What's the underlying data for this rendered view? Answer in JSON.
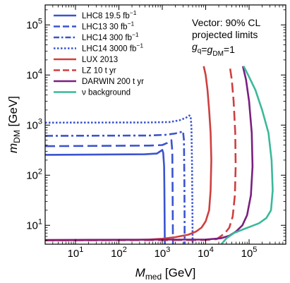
{
  "chart_data": {
    "type": "line",
    "xlabel": {
      "main": "M",
      "sub": "med",
      "unit": " [GeV]"
    },
    "ylabel": {
      "main": "m",
      "sub": "DM",
      "unit": " [GeV]"
    },
    "xscale": "log",
    "yscale": "log",
    "xlim": [
      2,
      700000
    ],
    "ylim": [
      4.2,
      250000
    ],
    "x_ticks": [
      {
        "value": 10,
        "label": "10",
        "sup": "1"
      },
      {
        "value": 100,
        "label": "10",
        "sup": "2"
      },
      {
        "value": 1000,
        "label": "10",
        "sup": "3"
      },
      {
        "value": 10000,
        "label": "10",
        "sup": "4"
      },
      {
        "value": 100000,
        "label": "10",
        "sup": "5"
      }
    ],
    "y_ticks": [
      {
        "value": 10,
        "label": "10",
        "sup": "1"
      },
      {
        "value": 100,
        "label": "10",
        "sup": "2"
      },
      {
        "value": 1000,
        "label": "10",
        "sup": "3"
      },
      {
        "value": 10000,
        "label": "10",
        "sup": "4"
      },
      {
        "value": 100000,
        "label": "10",
        "sup": "5"
      }
    ],
    "grid": false,
    "legend_position": "top-left",
    "annotation": {
      "line1": "Vector: 90% CL",
      "line2": "projected limits",
      "line3_parts": [
        "g",
        "q",
        "=g",
        "DM",
        "=1"
      ]
    },
    "series": [
      {
        "name": "LHC8 19.5 fb",
        "name_sup": "−1",
        "color": "#3a54cf",
        "dash": "solid",
        "x": [
          2,
          400,
          750,
          900,
          1000,
          1050,
          1100,
          1120,
          1130,
          1140,
          1150
        ],
        "y": [
          255,
          262,
          270,
          300,
          320,
          280,
          150,
          50,
          15,
          6,
          4.2
        ]
      },
      {
        "name": "LHC13 30 fb",
        "name_sup": "−1",
        "color": "#3a54cf",
        "dash": "longdash",
        "x": [
          2,
          500,
          1000,
          1300,
          1500,
          1620,
          1700,
          1730,
          1745,
          1760
        ],
        "y": [
          380,
          390,
          400,
          440,
          480,
          500,
          300,
          60,
          12,
          4.2
        ]
      },
      {
        "name": "LHC14 300 fb",
        "name_sup": "−1",
        "color": "#3a54cf",
        "dash": "dashdot",
        "x": [
          2,
          500,
          1200,
          2000,
          2600,
          3000,
          3150,
          3230,
          3260,
          3280
        ],
        "y": [
          610,
          620,
          640,
          680,
          720,
          750,
          500,
          80,
          15,
          4.2
        ]
      },
      {
        "name": "LHC14 3000 fb",
        "name_sup": "−1",
        "color": "#3a54cf",
        "dash": "dotted",
        "x": [
          2,
          500,
          1500,
          2500,
          3500,
          4200,
          4500,
          4700,
          4850,
          4950,
          5000
        ],
        "y": [
          1120,
          1130,
          1150,
          1250,
          1400,
          1550,
          1500,
          900,
          150,
          20,
          4.2
        ]
      },
      {
        "name": "LUX 2013",
        "color": "#cf3f3f",
        "dash": "solid",
        "x": [
          2,
          200,
          500,
          1000,
          2000,
          4000,
          6000,
          8000,
          10000,
          12000,
          13000,
          13500,
          13000,
          12000,
          11000,
          10000,
          9000
        ],
        "y": [
          5,
          5.1,
          5.2,
          5.4,
          5.8,
          6.5,
          7.5,
          9,
          12,
          20,
          50,
          200,
          700,
          2000,
          5000,
          10000,
          15000
        ]
      },
      {
        "name": "LZ 10 t yr",
        "color": "#cf3f3f",
        "dash": "longdash",
        "x": [
          2,
          10000,
          18000,
          22000,
          28000,
          35000,
          42000,
          47000,
          49000,
          48000,
          44000,
          40000,
          36000
        ],
        "y": [
          5,
          5.1,
          5.3,
          6,
          7,
          9,
          15,
          40,
          150,
          700,
          3000,
          8000,
          15000
        ]
      },
      {
        "name": "DARWIN 200 t yr",
        "color": "#7b1f7f",
        "dash": "solid",
        "x": [
          2,
          10000,
          22000,
          35000,
          50000,
          70000,
          90000,
          110000,
          120000,
          115000,
          100000,
          85000,
          72000
        ],
        "y": [
          5.1,
          5.2,
          5.5,
          6.2,
          7.5,
          10,
          16,
          40,
          150,
          700,
          3000,
          8000,
          15000
        ]
      },
      {
        "name": "ν background",
        "color": "#3cb89a",
        "dash": "solid",
        "x": [
          23000,
          30000,
          45000,
          70000,
          110000,
          170000,
          250000,
          320000,
          350000,
          330000,
          280000,
          200000,
          140000,
          95000,
          75000
        ],
        "y": [
          4.2,
          5.5,
          7,
          8.2,
          9.5,
          11,
          14,
          20,
          50,
          200,
          700,
          2000,
          5000,
          10000,
          15000
        ]
      }
    ]
  }
}
